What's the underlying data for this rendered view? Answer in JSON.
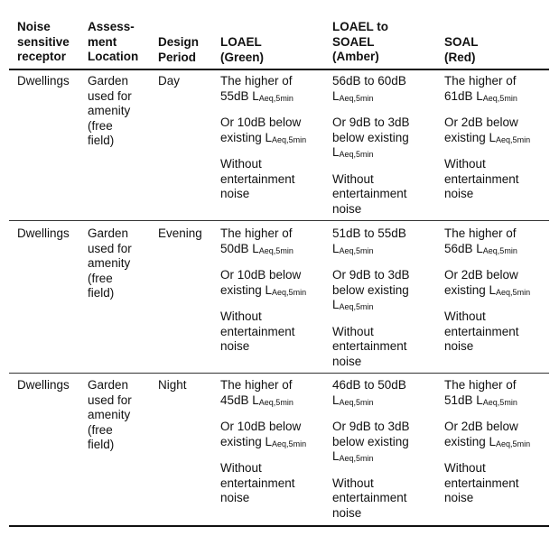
{
  "headers": {
    "receptor": [
      "Noise",
      "sensitive",
      "receptor"
    ],
    "location": [
      "Assess-",
      "ment",
      "Location"
    ],
    "period": [
      "Design",
      "Period"
    ],
    "loael": [
      "LOAEL",
      "(Green)"
    ],
    "loael_soael": [
      "LOAEL to",
      "SOAEL",
      "(Amber)"
    ],
    "soal": [
      "SOAL",
      "(Red)"
    ]
  },
  "rows": [
    {
      "receptor": "Dwellings",
      "location": [
        "Garden",
        "used for",
        "amenity",
        "(free",
        "field)"
      ],
      "period": "Day",
      "loael": {
        "l1": "The higher of",
        "l2": "55dB L",
        "l2sub": "Aeq,5min",
        "l3": "Or 10dB below",
        "l4": "existing L",
        "l4sub": "Aeq,5min",
        "l5": "Without",
        "l6": "entertainment",
        "l7": "noise"
      },
      "amber": {
        "l1": "56dB to 60dB",
        "l2": "L",
        "l2sub": "Aeq,5min",
        "l3": "Or 9dB to 3dB",
        "l4": "below existing",
        "l5": "L",
        "l5sub": "Aeq,5min",
        "l6": "Without",
        "l7": "entertainment",
        "l8": "noise"
      },
      "soal": {
        "l1": "The higher of",
        "l2": "61dB L",
        "l2sub": "Aeq,5min",
        "l3": "Or 2dB below",
        "l4": "existing L",
        "l4sub": "Aeq,5min",
        "l5": "Without",
        "l6": "entertainment",
        "l7": "noise"
      }
    },
    {
      "receptor": "Dwellings",
      "location": [
        "Garden",
        "used for",
        "amenity",
        "(free",
        "field)"
      ],
      "period": "Evening",
      "loael": {
        "l1": "The higher of",
        "l2": "50dB L",
        "l2sub": "Aeq,5min",
        "l3": "Or 10dB below",
        "l4": "existing L",
        "l4sub": "Aeq,5min",
        "l5": "Without",
        "l6": "entertainment",
        "l7": "noise"
      },
      "amber": {
        "l1": "51dB to 55dB",
        "l2": "L",
        "l2sub": "Aeq,5min",
        "l3": "Or 9dB to 3dB",
        "l4": "below existing",
        "l5": "L",
        "l5sub": "Aeq,5min",
        "l6": "Without",
        "l7": "entertainment",
        "l8": "noise"
      },
      "soal": {
        "l1": "The higher of",
        "l2": "56dB L",
        "l2sub": "Aeq,5min",
        "l3": "Or 2dB below",
        "l4": "existing L",
        "l4sub": "Aeq,5min",
        "l5": "Without",
        "l6": "entertainment",
        "l7": "noise"
      }
    },
    {
      "receptor": "Dwellings",
      "location": [
        "Garden",
        "used for",
        "amenity",
        "(free",
        "field)"
      ],
      "period": "Night",
      "loael": {
        "l1": "The higher of",
        "l2": "45dB L",
        "l2sub": "Aeq,5min",
        "l3": "Or 10dB below",
        "l4": "existing L",
        "l4sub": "Aeq,5min",
        "l5": "Without",
        "l6": "entertainment",
        "l7": "noise"
      },
      "amber": {
        "l1": "46dB to 50dB",
        "l2": "L",
        "l2sub": "Aeq,5min",
        "l3": "Or 9dB to 3dB",
        "l4": "below existing",
        "l5": "L",
        "l5sub": "Aeq,5min",
        "l6": "Without",
        "l7": "entertainment",
        "l8": "noise"
      },
      "soal": {
        "l1": "The higher of",
        "l2": "51dB L",
        "l2sub": "Aeq,5min",
        "l3": "Or 2dB below",
        "l4": "existing L",
        "l4sub": "Aeq,5min",
        "l5": "Without",
        "l6": "entertainment",
        "l7": "noise"
      }
    }
  ]
}
